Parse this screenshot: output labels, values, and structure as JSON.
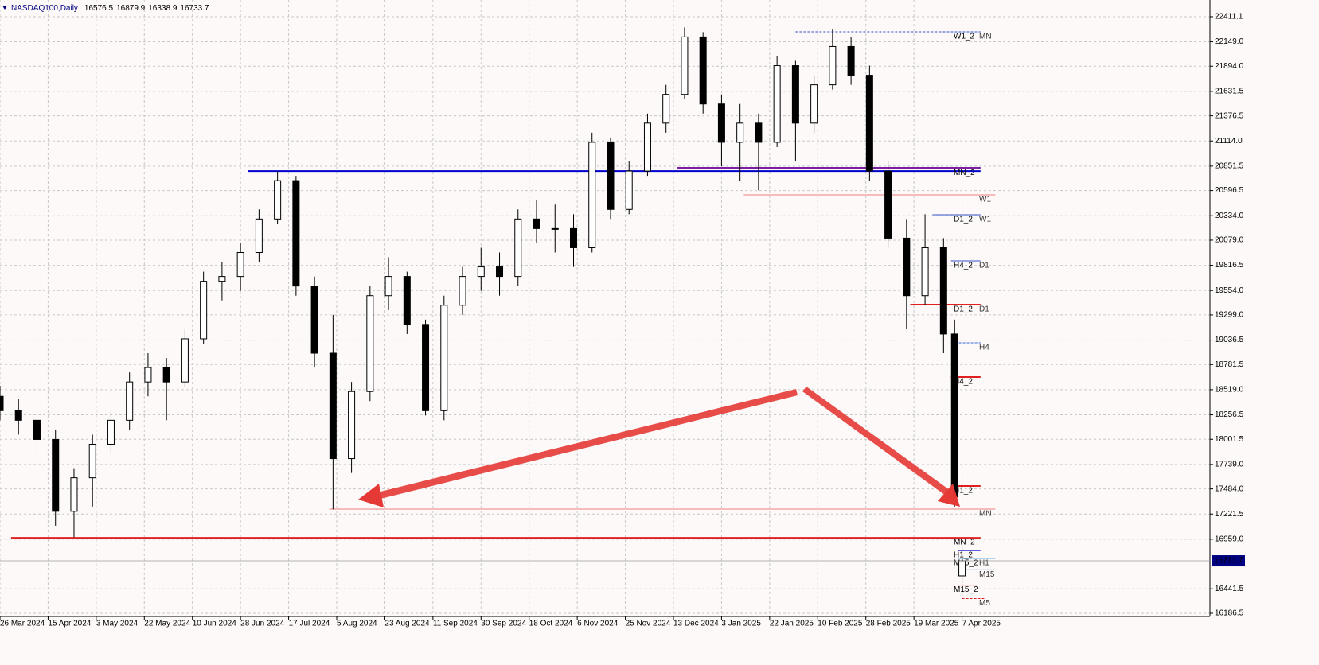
{
  "chart_data": {
    "type": "candlestick",
    "title": "NASDAQ100,Daily",
    "x": [
      0,
      5,
      10,
      15,
      20,
      25,
      30,
      35,
      40,
      45,
      50,
      55,
      60,
      65,
      70,
      75,
      80,
      85,
      90,
      95,
      100,
      105,
      110,
      115,
      120,
      125,
      130,
      135,
      140,
      145,
      150,
      155,
      160,
      165,
      170,
      175,
      180,
      185,
      190,
      195,
      200,
      205,
      210,
      215,
      220,
      225,
      230,
      235,
      240,
      245,
      250,
      255,
      258,
      260
    ],
    "open": [
      18450,
      18300,
      18200,
      18000,
      17250,
      17600,
      17950,
      18200,
      18600,
      18750,
      18600,
      19050,
      19650,
      19700,
      19950,
      20300,
      20700,
      19600,
      18900,
      17800,
      18500,
      19500,
      19700,
      19200,
      18300,
      19400,
      19700,
      19800,
      19700,
      20300,
      20200,
      20200,
      20000,
      21100,
      20400,
      20800,
      21300,
      21600,
      22200,
      21500,
      21100,
      21300,
      21100,
      21900,
      21300,
      21700,
      22100,
      21800,
      20800,
      20100,
      19500,
      20000,
      19100,
      16576.5
    ],
    "high": [
      18560,
      18420,
      18300,
      18100,
      17700,
      18050,
      18300,
      18700,
      18900,
      18850,
      19150,
      19750,
      19850,
      20050,
      20400,
      20800,
      20750,
      19700,
      19300,
      18600,
      19600,
      19900,
      19750,
      19250,
      19500,
      19800,
      20000,
      19950,
      20400,
      20500,
      20450,
      20350,
      21200,
      21150,
      20900,
      21400,
      21700,
      22300,
      22250,
      21600,
      21500,
      21400,
      22000,
      21950,
      21800,
      22280,
      22200,
      21900,
      20900,
      20300,
      20350,
      20100,
      19250,
      16879.9
    ],
    "low": [
      18200,
      18050,
      17850,
      17100,
      16980,
      17300,
      17850,
      18100,
      18450,
      18200,
      18550,
      19000,
      19450,
      19550,
      19850,
      20250,
      19500,
      18750,
      17270,
      17650,
      18400,
      19350,
      19100,
      18250,
      18200,
      19300,
      19550,
      19500,
      19600,
      20050,
      19950,
      19800,
      19950,
      20300,
      20350,
      20750,
      21200,
      21550,
      21400,
      20850,
      20700,
      20600,
      21050,
      20900,
      21200,
      21650,
      21700,
      20700,
      20000,
      19150,
      19400,
      18900,
      17300,
      16338.9
    ],
    "close": [
      18300,
      18200,
      18000,
      17250,
      17600,
      17950,
      18200,
      18600,
      18750,
      18600,
      19050,
      19650,
      19700,
      19950,
      20300,
      20700,
      19600,
      18900,
      17800,
      18500,
      19500,
      19700,
      19200,
      18300,
      19400,
      19700,
      19800,
      19700,
      20300,
      20200,
      20200,
      20000,
      21100,
      20400,
      20800,
      21300,
      21600,
      22200,
      21500,
      21100,
      21300,
      21100,
      21900,
      21300,
      21700,
      22100,
      21800,
      20800,
      20100,
      19500,
      20000,
      19100,
      17400,
      16733.7
    ],
    "xlim": [
      0,
      327
    ],
    "ylim": [
      16153,
      22585
    ],
    "xticks": [
      {
        "value": 0,
        "label": "26 Mar 2024"
      },
      {
        "value": 13,
        "label": "15 Apr 2024"
      },
      {
        "value": 26,
        "label": "3 May 2024"
      },
      {
        "value": 39,
        "label": "22 May 2024"
      },
      {
        "value": 52,
        "label": "10 Jun 2024"
      },
      {
        "value": 65,
        "label": "28 Jun 2024"
      },
      {
        "value": 78,
        "label": "17 Jul 2024"
      },
      {
        "value": 91,
        "label": "5 Aug 2024"
      },
      {
        "value": 104,
        "label": "23 Aug 2024"
      },
      {
        "value": 117,
        "label": "11 Sep 2024"
      },
      {
        "value": 130,
        "label": "30 Sep 2024"
      },
      {
        "value": 143,
        "label": "18 Oct 2024"
      },
      {
        "value": 156,
        "label": "6 Nov 2024"
      },
      {
        "value": 169,
        "label": "25 Nov 2024"
      },
      {
        "value": 182,
        "label": "13 Dec 2024"
      },
      {
        "value": 195,
        "label": "3 Jan 2025"
      },
      {
        "value": 208,
        "label": "22 Jan 2025"
      },
      {
        "value": 221,
        "label": "10 Feb 2025"
      },
      {
        "value": 234,
        "label": "28 Feb 2025"
      },
      {
        "value": 247,
        "label": "19 Mar 2025"
      },
      {
        "value": 260,
        "label": "7 Apr 2025"
      }
    ],
    "yticks": [
      22411.1,
      {
        "value": 22149,
        "label": "22149.0"
      },
      {
        "value": 21894,
        "label": "21894.0"
      },
      21631.5,
      21376.5,
      {
        "value": 21114,
        "label": "21114.0"
      },
      20851.5,
      20596.5,
      {
        "value": 20334,
        "label": "20334.0"
      },
      {
        "value": 20079,
        "label": "20079.0"
      },
      19816.5,
      {
        "value": 19554,
        "label": "19554.0"
      },
      {
        "value": 19299,
        "label": "19299.0"
      },
      19036.5,
      18781.5,
      {
        "value": 18519,
        "label": "18519.0"
      },
      18256.5,
      18001.5,
      {
        "value": 17739,
        "label": "17739.0"
      },
      {
        "value": 17484,
        "label": "17484.0"
      },
      17221.5,
      {
        "value": 16959,
        "label": "16959.0"
      },
      16441.5,
      16186.5
    ],
    "grid": true,
    "bull_color": "#ffffff",
    "bear_color": "#000000",
    "levels": [
      {
        "value": 20800,
        "from": 67,
        "to": 265,
        "color": "#0000cc",
        "width": 2
      },
      {
        "value": 20830,
        "from": 183,
        "to": 265,
        "color": "#7b1fa2",
        "width": 3,
        "left_label": "MN_2"
      },
      {
        "value": 22253,
        "from": 215,
        "to": 265,
        "color": "#3355cc",
        "width": 1,
        "dashed": true,
        "left_label": "W1_2",
        "right_label": "MN"
      },
      {
        "value": 20552,
        "from": 201,
        "to": 269,
        "color": "#f08080",
        "width": 1,
        "right_label": "W1"
      },
      {
        "value": 20344,
        "from": 252,
        "to": 265,
        "color": "#3355cc",
        "width": 1,
        "left_label": "D1_2",
        "right_label": "W1"
      },
      {
        "value": 19863,
        "from": 257,
        "to": 265,
        "color": "#3355cc",
        "width": 1,
        "left_label": "H4_2",
        "right_label": "D1"
      },
      {
        "value": 19406,
        "from": 246,
        "to": 265,
        "color": "#e02020",
        "width": 2,
        "left_label": "D1_2",
        "right_label": "D1"
      },
      {
        "value": 19008,
        "from": 257,
        "to": 265,
        "color": "#3366dd",
        "width": 1,
        "dashed": true,
        "right_label": "H4"
      },
      {
        "value": 18651,
        "from": 257,
        "to": 265,
        "color": "#e02020",
        "width": 2,
        "left_label": "H4_2"
      },
      {
        "value": 17514,
        "from": 257,
        "to": 265,
        "color": "#e02020",
        "width": 2,
        "left_label": "H1_2"
      },
      {
        "value": 17273,
        "from": 89,
        "to": 269,
        "color": "#f08080",
        "width": 1,
        "right_label": "MN"
      },
      {
        "value": 16974,
        "from": 3,
        "to": 265,
        "color": "#e02020",
        "width": 2,
        "left_label": "MN_2"
      },
      {
        "value": 16841,
        "from": 259,
        "to": 265,
        "color": "#0000cc",
        "width": 1,
        "left_label": "H1_2"
      },
      {
        "value": 16760,
        "from": 259,
        "to": 269,
        "color": "#3399dd",
        "width": 1,
        "left_label": "M15_2",
        "right_label": "H1"
      },
      {
        "value": 16640,
        "from": 260,
        "to": 269,
        "color": "#3399dd",
        "width": 1,
        "right_label": "M15"
      },
      {
        "value": 16480,
        "from": 259,
        "to": 264,
        "color": "#e02020",
        "width": 1,
        "left_label": "M15_2"
      },
      {
        "value": 16340,
        "from": 260,
        "to": 266,
        "color": "#e02020",
        "width": 1,
        "dashed": true,
        "right_label": "M5"
      }
    ]
  }
}
